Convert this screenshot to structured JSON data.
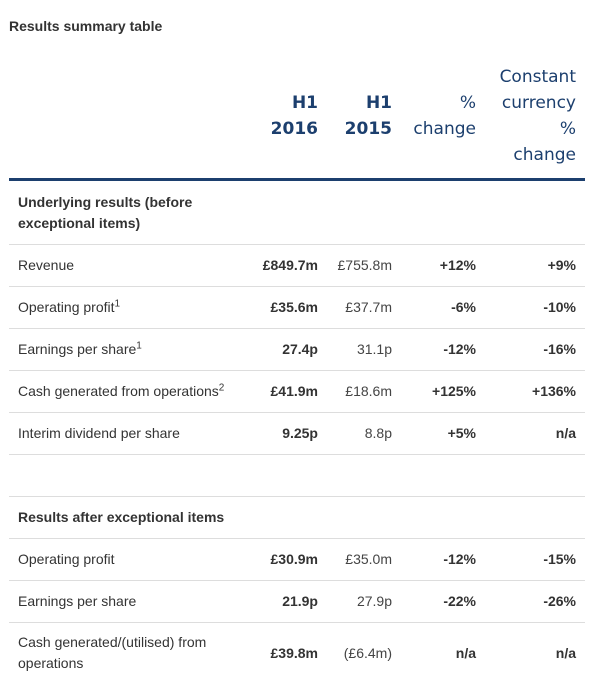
{
  "title": "Results summary table",
  "headers": {
    "col1": [
      "H1",
      "2016"
    ],
    "col2": [
      "H1",
      "2015"
    ],
    "col3": [
      "%",
      "change"
    ],
    "col4": [
      "Constant",
      "currency",
      "%",
      "change"
    ]
  },
  "underlying": {
    "heading": [
      "Underlying results (before",
      "exceptional items)"
    ],
    "rows": [
      {
        "label": "Revenue",
        "sup": "",
        "h1_2016": "£849.7m",
        "h1_2015": "£755.8m",
        "pct": "+12%",
        "cc": "+9%"
      },
      {
        "label": "Operating profit",
        "sup": "1",
        "h1_2016": "£35.6m",
        "h1_2015": "£37.7m",
        "pct": "-6%",
        "cc": "-10%"
      },
      {
        "label": "Earnings per share",
        "sup": "1",
        "h1_2016": "27.4p",
        "h1_2015": "31.1p",
        "pct": "-12%",
        "cc": "-16%"
      },
      {
        "label": "Cash generated from operations",
        "sup": "2",
        "h1_2016": "£41.9m",
        "h1_2015": "£18.6m",
        "pct": "+125%",
        "cc": "+136%"
      },
      {
        "label": "Interim dividend per share",
        "sup": "",
        "h1_2016": "9.25p",
        "h1_2015": "8.8p",
        "pct": "+5%",
        "cc": "n/a"
      }
    ]
  },
  "after": {
    "heading": "Results after exceptional items",
    "rows": [
      {
        "label": "Operating profit",
        "h1_2016": "£30.9m",
        "h1_2015": "£35.0m",
        "pct": "-12%",
        "cc": "-15%"
      },
      {
        "label": "Earnings per share",
        "h1_2016": "21.9p",
        "h1_2015": "27.9p",
        "pct": "-22%",
        "cc": "-26%"
      },
      {
        "label": [
          "Cash generated/(utilised) from",
          "operations"
        ],
        "h1_2016": "£39.8m",
        "h1_2015": "(£6.4m)",
        "pct": "n/a",
        "cc": "n/a"
      }
    ]
  },
  "colors": {
    "header_blue": "#1c3f6e",
    "rule_grey": "#dddddd",
    "text": "#333333"
  }
}
